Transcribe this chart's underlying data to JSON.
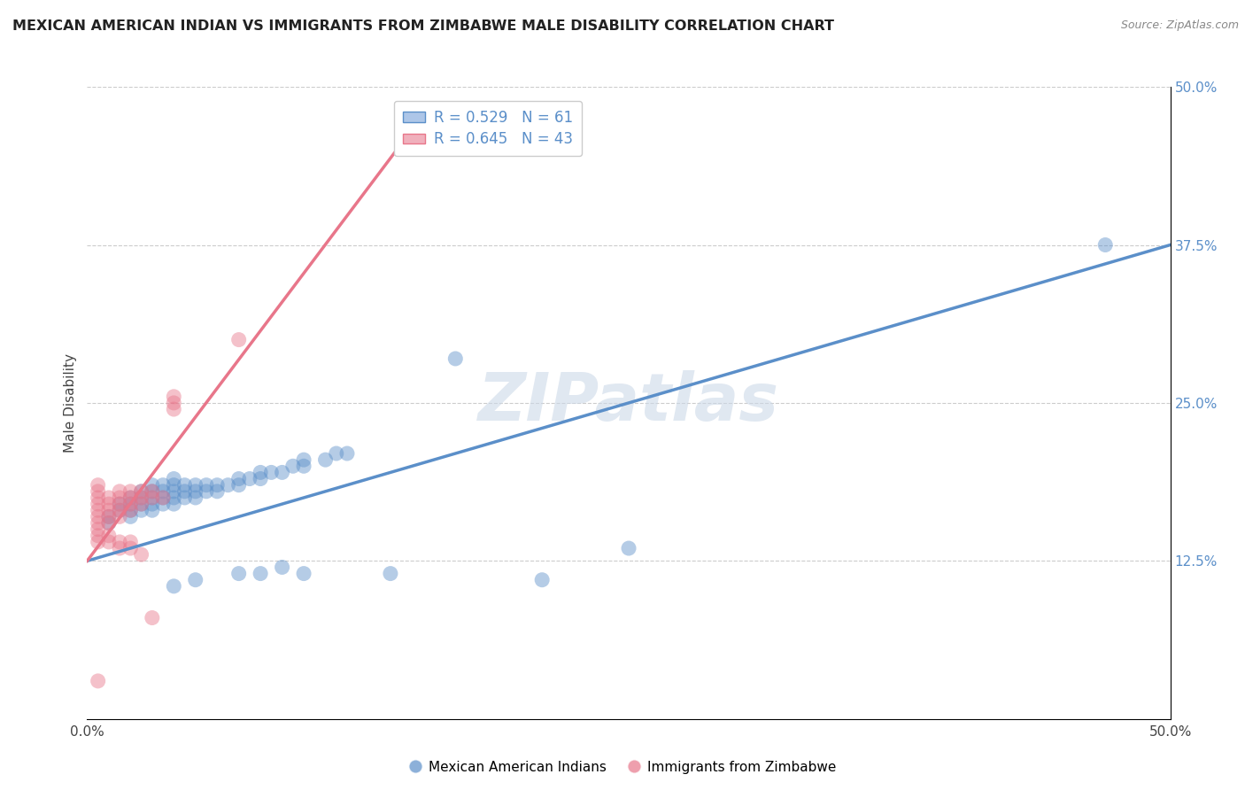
{
  "title": "MEXICAN AMERICAN INDIAN VS IMMIGRANTS FROM ZIMBABWE MALE DISABILITY CORRELATION CHART",
  "source": "Source: ZipAtlas.com",
  "ylabel": "Male Disability",
  "xlim": [
    0.0,
    0.5
  ],
  "ylim": [
    0.0,
    0.5
  ],
  "grid_color": "#cccccc",
  "background_color": "#ffffff",
  "watermark": "ZIPatlas",
  "legend_R1": "R = 0.529",
  "legend_N1": "N = 61",
  "legend_R2": "R = 0.645",
  "legend_N2": "N = 43",
  "blue_color": "#5b8fc9",
  "pink_color": "#e8768a",
  "blue_fill": "#adc6e8",
  "pink_fill": "#f0b0bc",
  "blue_scatter": [
    [
      0.01,
      0.155
    ],
    [
      0.01,
      0.16
    ],
    [
      0.015,
      0.165
    ],
    [
      0.015,
      0.17
    ],
    [
      0.02,
      0.16
    ],
    [
      0.02,
      0.165
    ],
    [
      0.02,
      0.17
    ],
    [
      0.02,
      0.175
    ],
    [
      0.025,
      0.165
    ],
    [
      0.025,
      0.17
    ],
    [
      0.025,
      0.175
    ],
    [
      0.025,
      0.18
    ],
    [
      0.03,
      0.165
    ],
    [
      0.03,
      0.17
    ],
    [
      0.03,
      0.175
    ],
    [
      0.03,
      0.18
    ],
    [
      0.03,
      0.185
    ],
    [
      0.035,
      0.17
    ],
    [
      0.035,
      0.175
    ],
    [
      0.035,
      0.18
    ],
    [
      0.035,
      0.185
    ],
    [
      0.04,
      0.17
    ],
    [
      0.04,
      0.175
    ],
    [
      0.04,
      0.18
    ],
    [
      0.04,
      0.185
    ],
    [
      0.04,
      0.19
    ],
    [
      0.045,
      0.175
    ],
    [
      0.045,
      0.18
    ],
    [
      0.045,
      0.185
    ],
    [
      0.05,
      0.175
    ],
    [
      0.05,
      0.18
    ],
    [
      0.05,
      0.185
    ],
    [
      0.055,
      0.18
    ],
    [
      0.055,
      0.185
    ],
    [
      0.06,
      0.18
    ],
    [
      0.06,
      0.185
    ],
    [
      0.065,
      0.185
    ],
    [
      0.07,
      0.185
    ],
    [
      0.07,
      0.19
    ],
    [
      0.075,
      0.19
    ],
    [
      0.08,
      0.19
    ],
    [
      0.08,
      0.195
    ],
    [
      0.085,
      0.195
    ],
    [
      0.09,
      0.195
    ],
    [
      0.095,
      0.2
    ],
    [
      0.1,
      0.2
    ],
    [
      0.1,
      0.205
    ],
    [
      0.11,
      0.205
    ],
    [
      0.115,
      0.21
    ],
    [
      0.12,
      0.21
    ],
    [
      0.04,
      0.105
    ],
    [
      0.05,
      0.11
    ],
    [
      0.07,
      0.115
    ],
    [
      0.08,
      0.115
    ],
    [
      0.09,
      0.12
    ],
    [
      0.1,
      0.115
    ],
    [
      0.17,
      0.285
    ],
    [
      0.14,
      0.115
    ],
    [
      0.21,
      0.11
    ],
    [
      0.25,
      0.135
    ],
    [
      0.47,
      0.375
    ]
  ],
  "pink_scatter": [
    [
      0.005,
      0.155
    ],
    [
      0.005,
      0.16
    ],
    [
      0.005,
      0.165
    ],
    [
      0.005,
      0.17
    ],
    [
      0.005,
      0.175
    ],
    [
      0.005,
      0.18
    ],
    [
      0.005,
      0.185
    ],
    [
      0.01,
      0.155
    ],
    [
      0.01,
      0.16
    ],
    [
      0.01,
      0.165
    ],
    [
      0.01,
      0.17
    ],
    [
      0.01,
      0.175
    ],
    [
      0.015,
      0.16
    ],
    [
      0.015,
      0.165
    ],
    [
      0.015,
      0.17
    ],
    [
      0.015,
      0.175
    ],
    [
      0.015,
      0.18
    ],
    [
      0.02,
      0.165
    ],
    [
      0.02,
      0.17
    ],
    [
      0.02,
      0.175
    ],
    [
      0.02,
      0.18
    ],
    [
      0.025,
      0.17
    ],
    [
      0.025,
      0.175
    ],
    [
      0.025,
      0.18
    ],
    [
      0.03,
      0.175
    ],
    [
      0.03,
      0.18
    ],
    [
      0.035,
      0.175
    ],
    [
      0.04,
      0.245
    ],
    [
      0.04,
      0.25
    ],
    [
      0.04,
      0.255
    ],
    [
      0.005,
      0.14
    ],
    [
      0.005,
      0.145
    ],
    [
      0.005,
      0.15
    ],
    [
      0.01,
      0.14
    ],
    [
      0.01,
      0.145
    ],
    [
      0.015,
      0.135
    ],
    [
      0.015,
      0.14
    ],
    [
      0.02,
      0.135
    ],
    [
      0.02,
      0.14
    ],
    [
      0.025,
      0.13
    ],
    [
      0.03,
      0.08
    ],
    [
      0.07,
      0.3
    ],
    [
      0.005,
      0.03
    ]
  ],
  "blue_line_x": [
    0.0,
    0.5
  ],
  "blue_line_y": [
    0.125,
    0.375
  ],
  "pink_line_x": [
    0.0,
    0.145
  ],
  "pink_line_y": [
    0.125,
    0.455
  ],
  "figsize": [
    14.06,
    8.92
  ],
  "dpi": 100
}
